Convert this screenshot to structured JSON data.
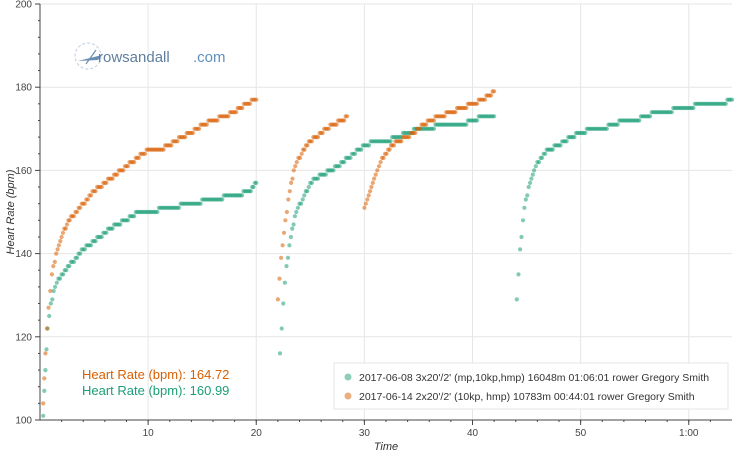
{
  "logo": {
    "text_main": "rowsandall",
    "text_suffix": ".com"
  },
  "stats": [
    {
      "label": "Heart Rate (bpm): 164.72",
      "color": "#d95f02"
    },
    {
      "label": "Heart Rate (bpm): 160.99",
      "color": "#1b9e77"
    }
  ],
  "chart_data": {
    "type": "scatter",
    "xlabel": "Time",
    "ylabel": "Heart Rate (bpm)",
    "xlim": [
      0,
      64
    ],
    "ylim": [
      100,
      200
    ],
    "x_ticks": [
      {
        "value": 10,
        "label": "10"
      },
      {
        "value": 20,
        "label": "20"
      },
      {
        "value": 30,
        "label": "30"
      },
      {
        "value": 40,
        "label": "40"
      },
      {
        "value": 50,
        "label": "50"
      },
      {
        "value": 60,
        "label": "1:00"
      }
    ],
    "y_ticks": [
      100,
      120,
      140,
      160,
      180,
      200
    ],
    "grid": true,
    "legend_position": "bottom-right",
    "series": [
      {
        "name": "2017-06-08 3x20'/2' (mp,10kp,hmp) 16048m 01:06:01 rower Gregory Smith",
        "color": "#1b9e77",
        "segments": [
          {
            "t": [
              0.3,
              0.5,
              0.7,
              1,
              1.4,
              2,
              3,
              4,
              5,
              6,
              7,
              8,
              9,
              10,
              12,
              14,
              16,
              18,
              19.5,
              20
            ],
            "hr": [
              101,
              112,
              122,
              128,
              132,
              135,
              138,
              141,
              143,
              145,
              147,
              148,
              150,
              150,
              151,
              152,
              153,
              154,
              155,
              157
            ]
          },
          {
            "t": [
              22.2,
              22.5,
              22.8,
              23.2,
              23.7,
              24.3,
              25,
              26,
              27,
              28,
              29,
              30,
              31,
              32,
              33,
              34,
              35,
              36,
              37,
              38,
              39,
              40,
              41,
              42
            ],
            "hr": [
              116,
              128,
              137,
              144,
              150,
              153,
              157,
              159,
              160,
              162,
              164,
              166,
              167,
              167,
              168,
              169,
              170,
              170,
              171,
              171,
              171,
              172,
              173,
              173
            ]
          },
          {
            "t": [
              44.1,
              44.4,
              44.8,
              45.2,
              45.7,
              46.3,
              47,
              48,
              49,
              50,
              51,
              52,
              53,
              54,
              55,
              56,
              57,
              58,
              59,
              60,
              61,
              62,
              63,
              64
            ],
            "hr": [
              129,
              141,
              151,
              156,
              160,
              163,
              165,
              166,
              168,
              169,
              170,
              170,
              171,
              172,
              172,
              173,
              174,
              174,
              175,
              175,
              176,
              176,
              176,
              177
            ]
          }
        ]
      },
      {
        "name": "2017-06-14 2x20'/2' (10kp, hmp) 10783m 00:44:01 rower Gregory Smith",
        "color": "#d95f02",
        "segments": [
          {
            "t": [
              0.3,
              0.5,
              0.8,
              1.1,
              1.5,
              2,
              2.5,
              3,
              4,
              5,
              6,
              7,
              8,
              9,
              10,
              11,
              12,
              13,
              14,
              15,
              16,
              17,
              18,
              19,
              20
            ],
            "hr": [
              104,
              116,
              127,
              135,
              140,
              144,
              147,
              149,
              152,
              155,
              157,
              159,
              161,
              163,
              165,
              165,
              166,
              168,
              169,
              171,
              172,
              173,
              174,
              176,
              177
            ]
          },
          {
            "t": [
              22,
              22.3,
              22.7,
              23.1,
              23.6,
              24.2,
              25,
              26,
              27,
              28,
              28.4
            ],
            "hr": [
              129,
              139,
              148,
              155,
              161,
              164,
              167,
              169,
              171,
              172,
              173
            ]
          },
          {
            "t": [
              30,
              30.4,
              30.9,
              31.5,
              32.2,
              33,
              34,
              35,
              36,
              37,
              38,
              39,
              40,
              41,
              42
            ],
            "hr": [
              151,
              154,
              158,
              162,
              165,
              167,
              168,
              170,
              172,
              173,
              174,
              175,
              176,
              177,
              179
            ]
          }
        ]
      }
    ]
  }
}
